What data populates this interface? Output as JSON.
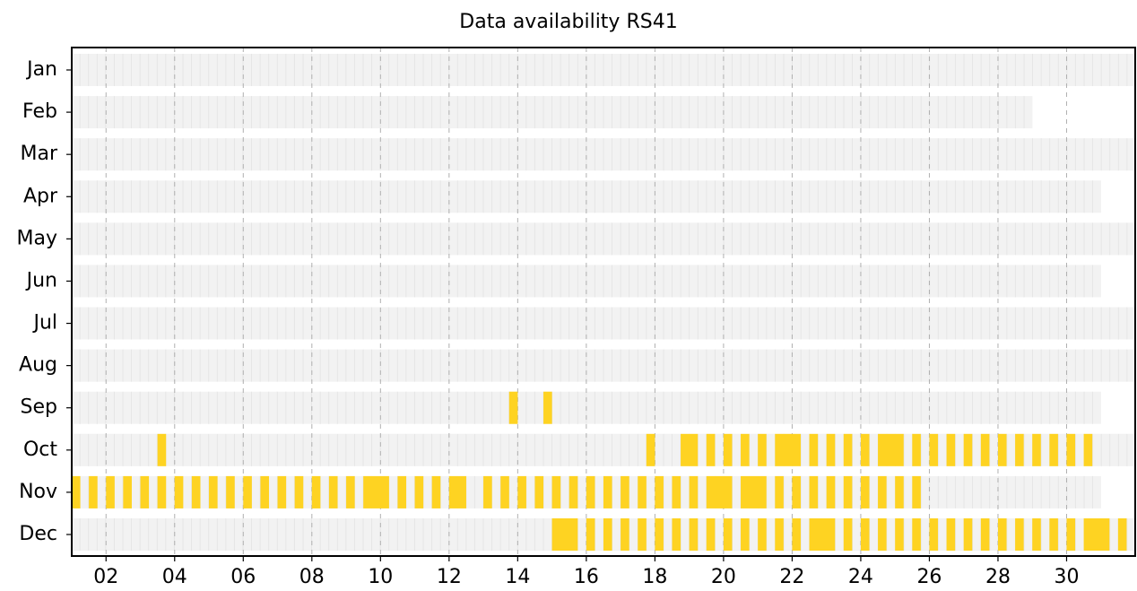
{
  "chart_data": {
    "type": "availability",
    "title": "Data availability RS41",
    "categories": [
      "Jan",
      "Feb",
      "Mar",
      "Apr",
      "May",
      "Jun",
      "Jul",
      "Aug",
      "Sep",
      "Oct",
      "Nov",
      "Dec"
    ],
    "extent": [
      [
        1,
        32
      ],
      [
        1,
        29
      ],
      [
        1,
        32
      ],
      [
        1,
        31
      ],
      [
        1,
        32
      ],
      [
        1,
        31
      ],
      [
        1,
        32
      ],
      [
        1,
        32
      ],
      [
        1,
        31
      ],
      [
        1,
        32
      ],
      [
        1,
        31
      ],
      [
        1,
        32
      ]
    ],
    "extent_color": "#f2f2f2",
    "color": "#fed322",
    "availability": [
      [],
      [],
      [],
      [],
      [],
      [],
      [],
      [],
      [
        [
          13.75,
          14
        ],
        [
          14.75,
          15
        ]
      ],
      [
        [
          3.5,
          3.75
        ],
        [
          17.75,
          18
        ],
        [
          18.75,
          19.25
        ],
        [
          19.5,
          19.75
        ],
        [
          20,
          20.25
        ],
        [
          20.5,
          20.75
        ],
        [
          21,
          21.25
        ],
        [
          21.5,
          22.25
        ],
        [
          22.5,
          22.75
        ],
        [
          23,
          23.25
        ],
        [
          23.5,
          23.75
        ],
        [
          24,
          24.25
        ],
        [
          24.5,
          25.25
        ],
        [
          25.5,
          25.75
        ],
        [
          26,
          26.25
        ],
        [
          26.5,
          26.75
        ],
        [
          27,
          27.25
        ],
        [
          27.5,
          27.75
        ],
        [
          28,
          28.25
        ],
        [
          28.5,
          28.75
        ],
        [
          29,
          29.25
        ],
        [
          29.5,
          29.75
        ],
        [
          30,
          30.25
        ],
        [
          30.5,
          30.75
        ]
      ],
      [
        [
          1,
          1.25
        ],
        [
          1.5,
          1.75
        ],
        [
          2,
          2.25
        ],
        [
          2.5,
          2.75
        ],
        [
          3,
          3.25
        ],
        [
          3.5,
          3.75
        ],
        [
          4,
          4.25
        ],
        [
          4.5,
          4.75
        ],
        [
          5,
          5.25
        ],
        [
          5.5,
          5.75
        ],
        [
          6,
          6.25
        ],
        [
          6.5,
          6.75
        ],
        [
          7,
          7.25
        ],
        [
          7.5,
          7.75
        ],
        [
          8,
          8.25
        ],
        [
          8.5,
          8.75
        ],
        [
          9,
          9.25
        ],
        [
          9.5,
          10.25
        ],
        [
          10.5,
          10.75
        ],
        [
          11,
          11.25
        ],
        [
          11.5,
          11.75
        ],
        [
          12,
          12.5
        ],
        [
          13,
          13.25
        ],
        [
          13.5,
          13.75
        ],
        [
          14,
          14.25
        ],
        [
          14.5,
          14.75
        ],
        [
          15,
          15.25
        ],
        [
          15.5,
          15.75
        ],
        [
          16,
          16.25
        ],
        [
          16.5,
          16.75
        ],
        [
          17,
          17.25
        ],
        [
          17.5,
          17.75
        ],
        [
          18,
          18.25
        ],
        [
          18.5,
          18.75
        ],
        [
          19,
          19.25
        ],
        [
          19.5,
          20.25
        ],
        [
          20.5,
          21.25
        ],
        [
          21.5,
          21.75
        ],
        [
          22,
          22.25
        ],
        [
          22.5,
          22.75
        ],
        [
          23,
          23.25
        ],
        [
          23.5,
          23.75
        ],
        [
          24,
          24.25
        ],
        [
          24.5,
          24.75
        ],
        [
          25,
          25.25
        ],
        [
          25.5,
          25.75
        ]
      ],
      [
        [
          15,
          15.75
        ],
        [
          16,
          16.25
        ],
        [
          16.5,
          16.75
        ],
        [
          17,
          17.25
        ],
        [
          17.5,
          17.75
        ],
        [
          18,
          18.25
        ],
        [
          18.5,
          18.75
        ],
        [
          19,
          19.25
        ],
        [
          19.5,
          19.75
        ],
        [
          20,
          20.25
        ],
        [
          20.5,
          20.75
        ],
        [
          21,
          21.25
        ],
        [
          21.5,
          21.75
        ],
        [
          22,
          22.25
        ],
        [
          22.5,
          23.25
        ],
        [
          23.5,
          23.75
        ],
        [
          24,
          24.25
        ],
        [
          24.5,
          24.75
        ],
        [
          25,
          25.25
        ],
        [
          25.5,
          25.75
        ],
        [
          26,
          26.25
        ],
        [
          26.5,
          26.75
        ],
        [
          27,
          27.25
        ],
        [
          27.5,
          27.75
        ],
        [
          28,
          28.25
        ],
        [
          28.5,
          28.75
        ],
        [
          29,
          29.25
        ],
        [
          29.5,
          29.75
        ],
        [
          30,
          30.25
        ],
        [
          30.5,
          31.25
        ],
        [
          31.5,
          31.75
        ]
      ]
    ],
    "xlim": [
      1,
      32
    ],
    "xticks": [
      {
        "value": 2,
        "label": "02"
      },
      {
        "value": 4,
        "label": "04"
      },
      {
        "value": 6,
        "label": "06"
      },
      {
        "value": 8,
        "label": "08"
      },
      {
        "value": 10,
        "label": "10"
      },
      {
        "value": 12,
        "label": "12"
      },
      {
        "value": 14,
        "label": "14"
      },
      {
        "value": 16,
        "label": "16"
      },
      {
        "value": 18,
        "label": "18"
      },
      {
        "value": 20,
        "label": "20"
      },
      {
        "value": 22,
        "label": "22"
      },
      {
        "value": 24,
        "label": "24"
      },
      {
        "value": 26,
        "label": "26"
      },
      {
        "value": 28,
        "label": "28"
      },
      {
        "value": 30,
        "label": "30"
      }
    ],
    "grid": true
  }
}
